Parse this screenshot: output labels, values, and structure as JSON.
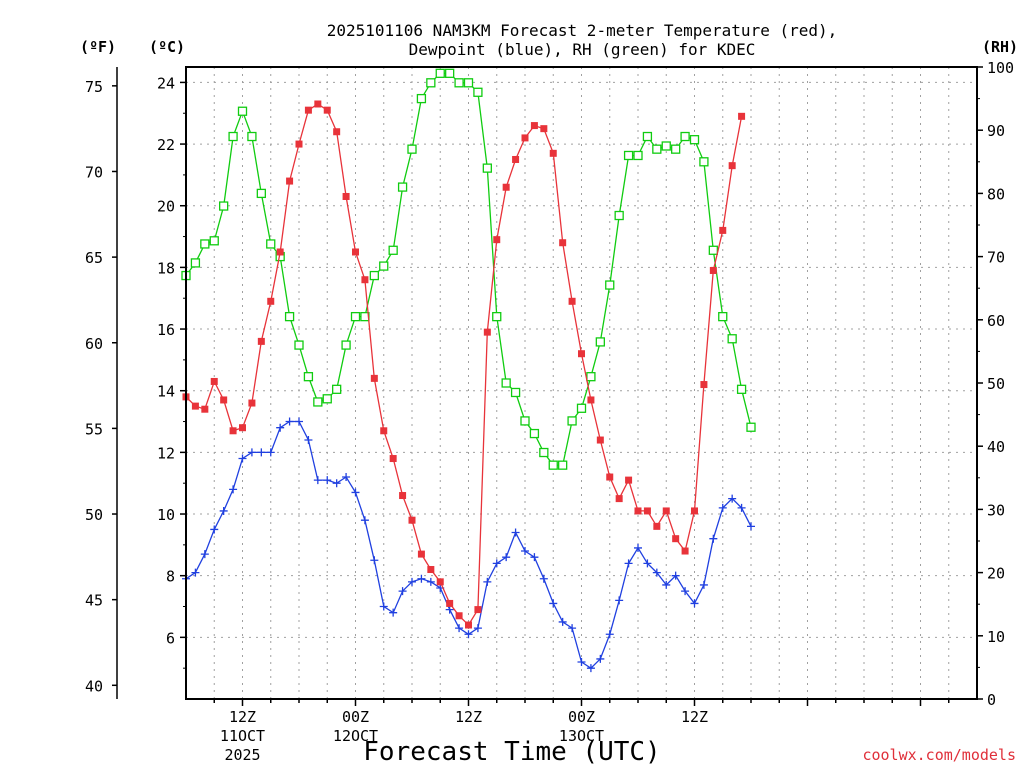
{
  "colors": {
    "temp": "#e8333a",
    "dewpoint": "#2040e0",
    "rh": "#10cc10",
    "grid": "#a0a0a0",
    "credit": "#e0303a"
  },
  "chart_data": {
    "type": "line",
    "title_line1": "2025101106 NAM3KM Forecast 2-meter Temperature (red),",
    "title_line2": "Dewpoint (blue), RH (green) for KDEC",
    "xlabel": "Forecast Time (UTC)",
    "credit": "coolwx.com/models",
    "unit_f": "(ºF)",
    "unit_c": "(ºC)",
    "unit_rh": "(RH)",
    "x_hours_since_start": [
      0,
      84
    ],
    "x_ticks": [
      {
        "hour": 6,
        "line1": "12Z",
        "line2": "11OCT",
        "line3": "2025"
      },
      {
        "hour": 18,
        "line1": "00Z",
        "line2": "12OCT",
        "line3": ""
      },
      {
        "hour": 30,
        "line1": "12Z",
        "line2": "",
        "line3": ""
      },
      {
        "hour": 42,
        "line1": "00Z",
        "line2": "13OCT",
        "line3": ""
      },
      {
        "hour": 54,
        "line1": "12Z",
        "line2": "",
        "line3": ""
      }
    ],
    "y_celsius_range": [
      4.0,
      24.5
    ],
    "y_celsius_ticks": [
      "6",
      "8",
      "10",
      "12",
      "14",
      "16",
      "18",
      "20",
      "22",
      "24"
    ],
    "y_fahrenheit_ticks": [
      "40",
      "45",
      "50",
      "55",
      "60",
      "65",
      "70",
      "75"
    ],
    "y_rh_range": [
      0,
      100
    ],
    "y_rh_ticks": [
      "0",
      "10",
      "20",
      "30",
      "40",
      "50",
      "60",
      "70",
      "80",
      "90",
      "100"
    ],
    "series": [
      {
        "name": "2-meter Temperature",
        "unit": "C",
        "color_key": "temp",
        "marker": "filled-square",
        "start_hour": 0,
        "step_hours": 1,
        "values": [
          13.8,
          13.5,
          13.4,
          14.3,
          13.7,
          12.7,
          12.8,
          13.6,
          15.6,
          16.9,
          18.5,
          20.8,
          22.0,
          23.1,
          23.3,
          23.1,
          22.4,
          20.3,
          18.5,
          17.6,
          14.4,
          12.7,
          11.8,
          10.6,
          9.8,
          8.7,
          8.2,
          7.8,
          7.1,
          6.7,
          6.4,
          6.9,
          15.9,
          18.9,
          20.6,
          21.5,
          22.2,
          22.6,
          22.5,
          21.7,
          18.8,
          16.9,
          15.2,
          13.7,
          12.4,
          11.2,
          10.5,
          11.1,
          10.1,
          10.1,
          9.6,
          10.1,
          9.2,
          8.8,
          10.1,
          14.2,
          17.9,
          19.2,
          21.3,
          22.9
        ]
      },
      {
        "name": "Dewpoint",
        "unit": "C",
        "color_key": "dewpoint",
        "marker": "plus",
        "start_hour": 0,
        "step_hours": 1,
        "values": [
          7.9,
          8.1,
          8.7,
          9.5,
          10.1,
          10.8,
          11.8,
          12.0,
          12.0,
          12.0,
          12.8,
          13.0,
          13.0,
          12.4,
          11.1,
          11.1,
          11.0,
          11.2,
          10.7,
          9.8,
          8.5,
          7.0,
          6.8,
          7.5,
          7.8,
          7.9,
          7.8,
          7.6,
          6.9,
          6.3,
          6.1,
          6.3,
          7.8,
          8.4,
          8.6,
          9.4,
          8.8,
          8.6,
          7.9,
          7.1,
          6.5,
          6.3,
          5.2,
          5.0,
          5.3,
          6.1,
          7.2,
          8.4,
          8.9,
          8.4,
          8.1,
          7.7,
          8.0,
          7.5,
          7.1,
          7.7,
          9.2,
          10.2,
          10.5,
          10.2,
          9.6
        ]
      },
      {
        "name": "Relative Humidity",
        "unit": "%",
        "color_key": "rh",
        "marker": "open-square",
        "start_hour": 0,
        "step_hours": 1,
        "values": [
          67,
          69,
          72,
          72.5,
          78,
          89,
          93,
          89,
          80,
          72,
          70,
          60.5,
          56,
          51,
          47,
          47.5,
          49,
          56,
          60.5,
          60.5,
          67,
          68.5,
          71,
          81,
          87,
          95,
          97.5,
          99,
          99,
          97.5,
          97.5,
          96,
          84,
          60.5,
          50,
          48.5,
          44,
          42,
          39,
          37,
          37,
          44,
          46,
          51,
          56.5,
          65.5,
          76.5,
          86,
          86,
          89,
          87,
          87.5,
          87,
          89,
          88.5,
          85,
          71,
          60.5,
          57,
          49,
          43
        ]
      }
    ]
  }
}
